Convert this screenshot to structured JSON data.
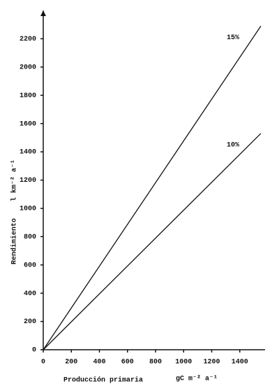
{
  "chart_data": {
    "type": "line",
    "xlabel": "Producción primaria",
    "xlabel_unit": "gC m⁻² a⁻¹",
    "ylabel": "Rendimiento",
    "ylabel_unit": "l km⁻² a⁻¹",
    "x": [
      0,
      1550
    ],
    "series": [
      {
        "name": "15%",
        "color": "#111111",
        "values": [
          0,
          2290
        ]
      },
      {
        "name": "10%",
        "color": "#111111",
        "values": [
          0,
          1530
        ]
      }
    ],
    "xlim": [
      0,
      1580
    ],
    "ylim": [
      0,
      2400
    ],
    "xticks": [
      0,
      200,
      400,
      600,
      800,
      1000,
      1200,
      1400
    ],
    "yticks": [
      0,
      200,
      400,
      600,
      800,
      1000,
      1200,
      1400,
      1600,
      1800,
      2000,
      2200
    ],
    "grid": false
  }
}
